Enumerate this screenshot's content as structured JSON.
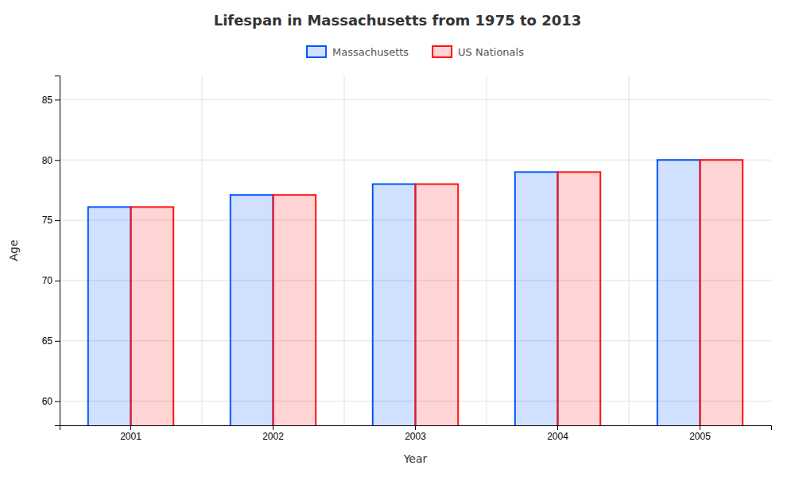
{
  "chart_data": {
    "type": "bar",
    "title": "Lifespan in Massachusetts from 1975 to 2013",
    "x_label": "Year",
    "y_label": "Age",
    "categories": [
      "2001",
      "2002",
      "2003",
      "2004",
      "2005"
    ],
    "series": [
      {
        "name": "Massachusetts",
        "color": "#0055ff",
        "values": [
          76.1,
          77.1,
          78.0,
          79.0,
          80.0
        ]
      },
      {
        "name": "US Nationals",
        "color": "#ff1111",
        "values": [
          76.1,
          77.1,
          78.0,
          79.0,
          80.0
        ]
      }
    ],
    "ylim": [
      58,
      87
    ],
    "yticks": [
      60,
      65,
      70,
      75,
      80,
      85
    ],
    "grid": true,
    "legend": "top"
  }
}
